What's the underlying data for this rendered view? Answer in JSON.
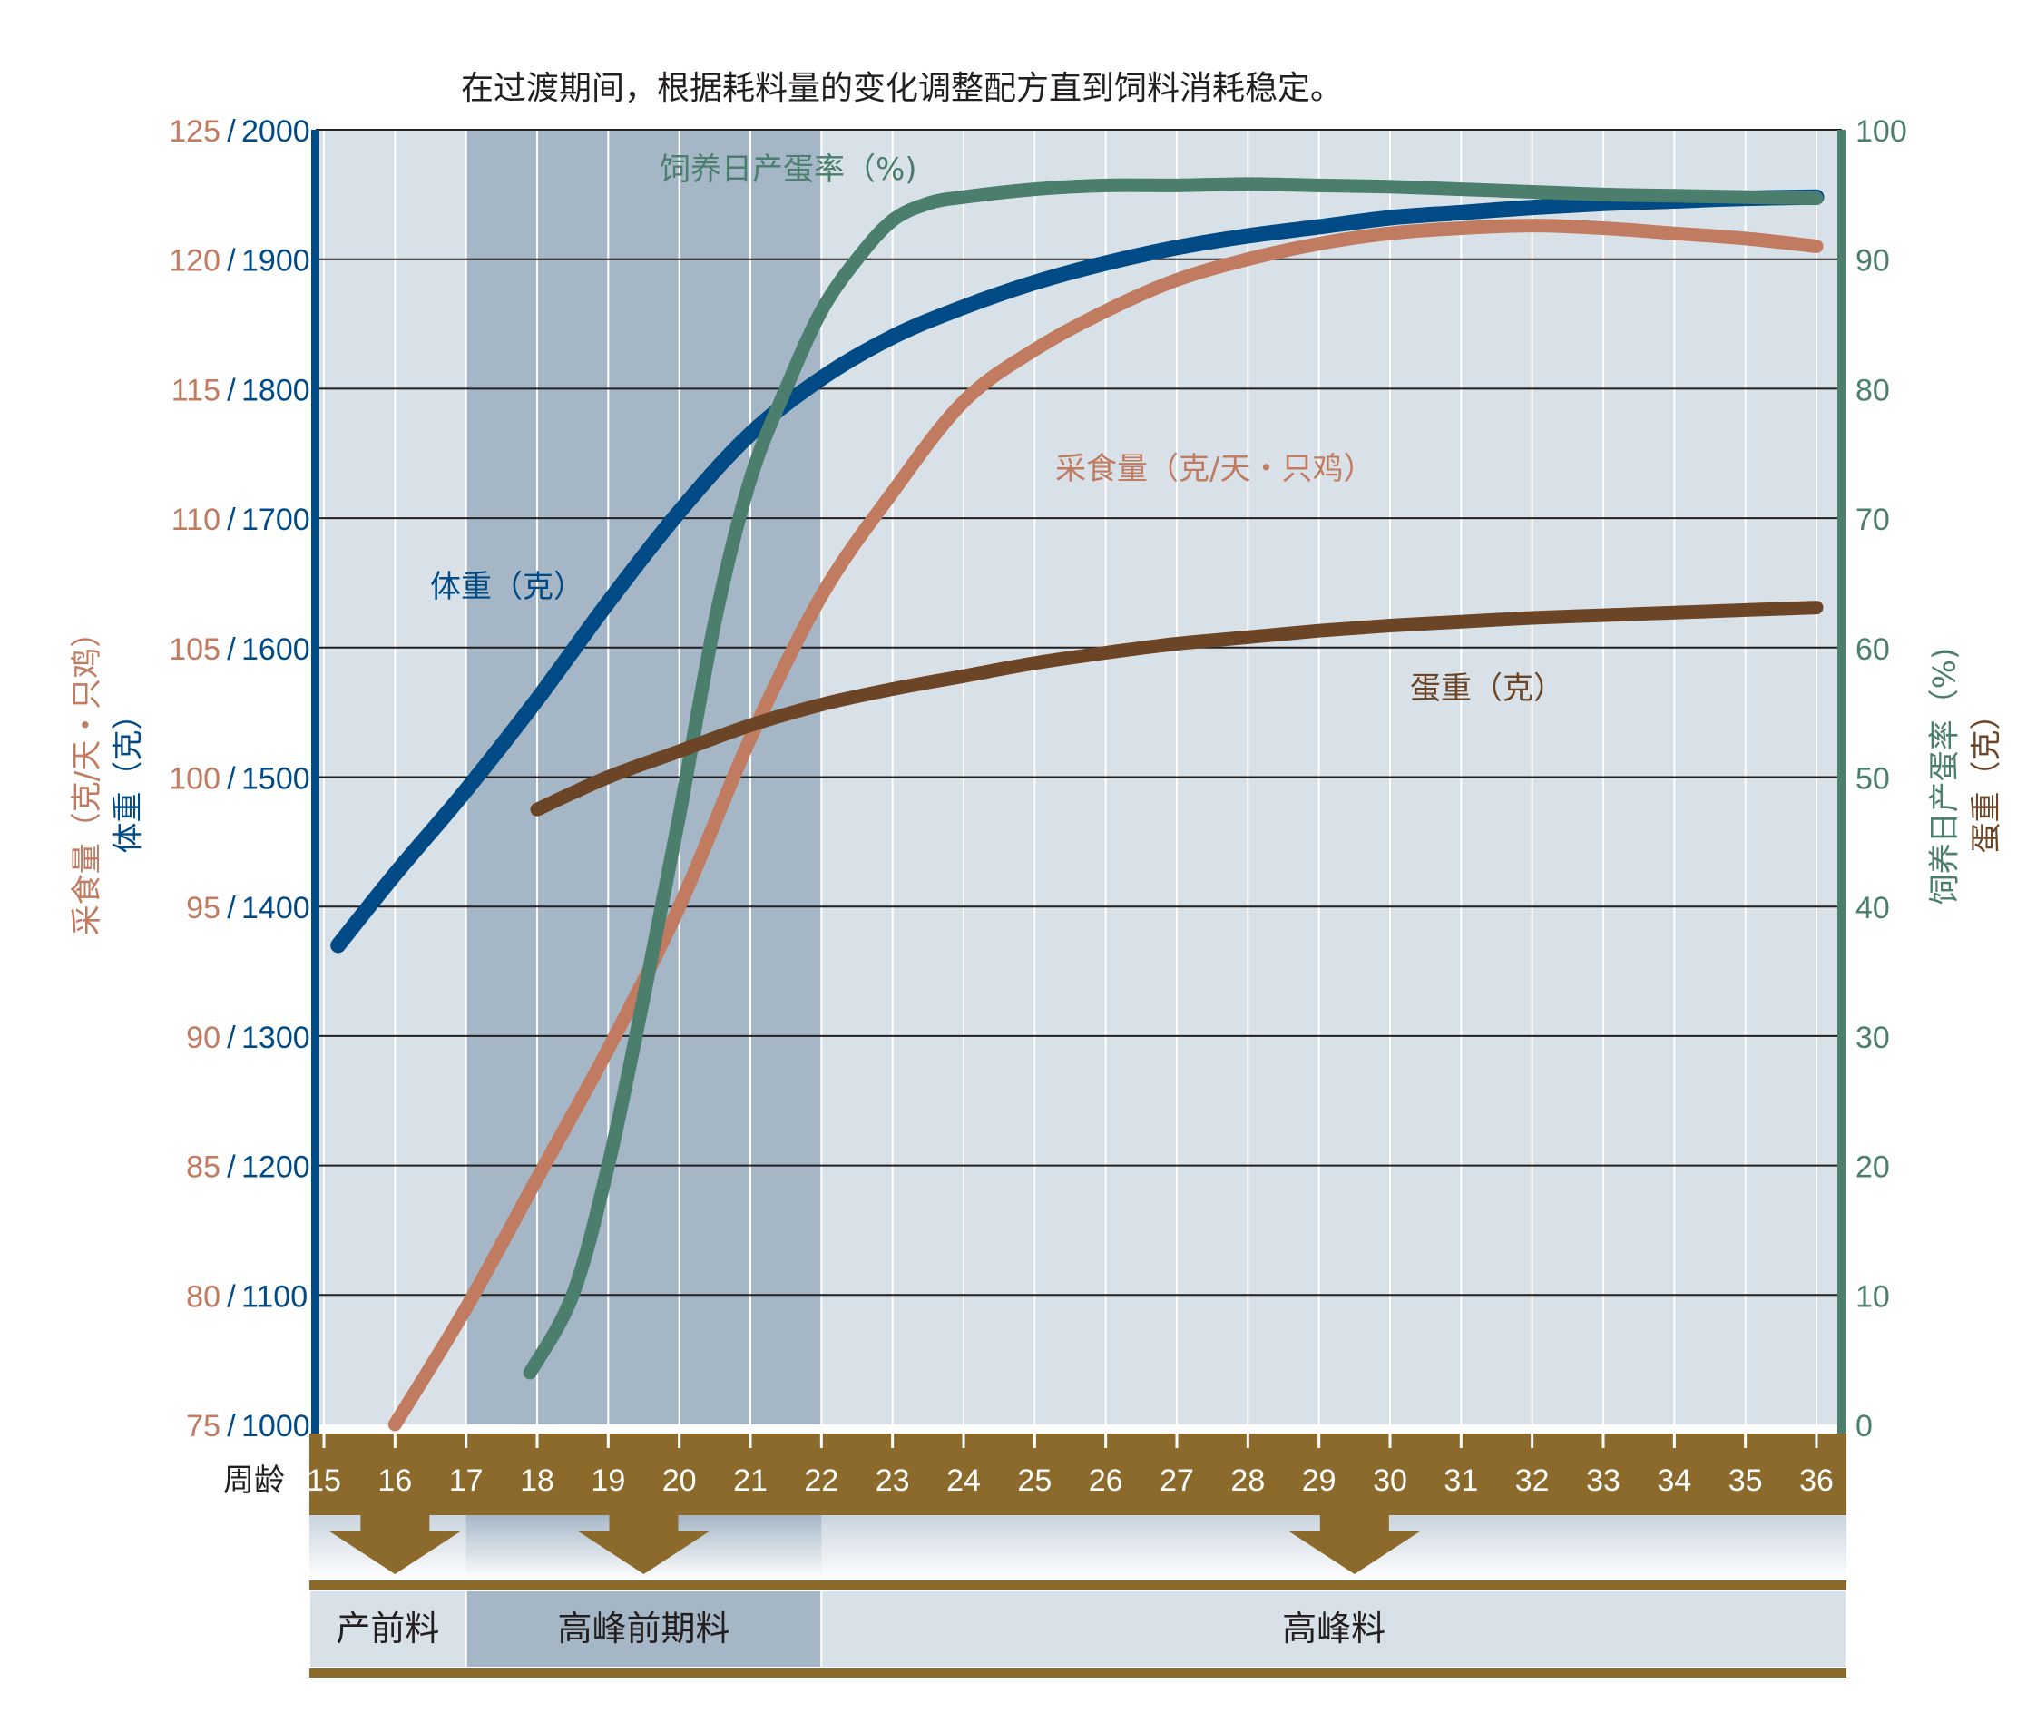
{
  "title": "在过渡期间，根据耗料量的变化调整配方直到饲料消耗稳定。",
  "colors": {
    "body_weight": "#004a86",
    "feed": "#c07b60",
    "production": "#4b7e6d",
    "egg_weight": "#6b4526",
    "band": "#8b6a2b",
    "plot_bg": "#d9e1e8",
    "shade_bg": "#a5b7c7"
  },
  "axes": {
    "left_label_feed": "采食量（克/天・只鸡）",
    "left_label_weight": "体重（克）",
    "right_label_production": "饲养日产蛋率（%)",
    "right_label_egg": "蛋重（克）",
    "x_label": "周龄",
    "feed_ticks": [
      "75",
      "80",
      "85",
      "90",
      "95",
      "100",
      "105",
      "110",
      "115",
      "120",
      "125"
    ],
    "weight_ticks": [
      "1000",
      "1100",
      "1200",
      "1300",
      "1400",
      "1500",
      "1600",
      "1700",
      "1800",
      "1900",
      "2000"
    ],
    "right_ticks": [
      "0",
      "10",
      "20",
      "30",
      "40",
      "50",
      "60",
      "70",
      "80",
      "90",
      "100"
    ],
    "x_ticks": [
      "15",
      "16",
      "17",
      "18",
      "19",
      "20",
      "21",
      "22",
      "23",
      "24",
      "25",
      "26",
      "27",
      "28",
      "29",
      "30",
      "31",
      "32",
      "33",
      "34",
      "35",
      "36"
    ]
  },
  "feed_phases": [
    {
      "label": "产前料",
      "from_week": 15,
      "to_week": 17
    },
    {
      "label": "高峰前期料",
      "from_week": 17,
      "to_week": 22
    },
    {
      "label": "高峰料",
      "from_week": 22,
      "to_week": 36.3
    }
  ],
  "chart_data": {
    "type": "line",
    "x_unit": "周龄",
    "xlim": [
      15,
      36
    ],
    "ylim_feed": [
      75,
      125
    ],
    "ylim_weight": [
      1000,
      2000
    ],
    "ylim_right": [
      0,
      100
    ],
    "shaded_range_weeks": [
      17,
      22
    ],
    "series": [
      {
        "name": "体重（克）",
        "axis": "left_weight",
        "x": [
          15.2,
          16,
          17,
          18,
          19,
          20,
          21,
          22,
          23,
          24,
          25,
          26,
          27,
          28,
          29,
          30,
          31,
          32,
          33,
          34,
          35,
          36
        ],
        "y": [
          1370,
          1425,
          1490,
          1560,
          1635,
          1705,
          1765,
          1808,
          1840,
          1863,
          1882,
          1897,
          1909,
          1918,
          1925,
          1932,
          1936,
          1940,
          1943,
          1945,
          1947,
          1948
        ]
      },
      {
        "name": "采食量（克/天・只鸡）",
        "axis": "left_feed",
        "x": [
          16,
          17,
          18,
          19,
          20,
          21,
          22,
          23,
          24,
          25,
          26,
          27,
          28,
          29,
          30,
          31,
          32,
          33,
          34,
          35,
          36
        ],
        "y": [
          75,
          79.5,
          84.5,
          89.5,
          95,
          101.5,
          107,
          111,
          114.5,
          116.5,
          118,
          119.2,
          120,
          120.6,
          121,
          121.2,
          121.3,
          121.2,
          121,
          120.8,
          120.5
        ]
      },
      {
        "name": "饲养日产蛋率（%)",
        "axis": "right",
        "x": [
          17.9,
          18.5,
          19,
          19.5,
          20,
          20.5,
          21,
          21.5,
          22,
          22.5,
          23,
          23.5,
          24,
          25,
          26,
          27,
          28,
          29,
          30,
          31,
          32,
          33,
          34,
          35,
          36
        ],
        "y": [
          4,
          10,
          20,
          33,
          47,
          62,
          73,
          80,
          86,
          90,
          93,
          94.3,
          94.8,
          95.4,
          95.7,
          95.7,
          95.8,
          95.7,
          95.6,
          95.4,
          95.2,
          95,
          94.9,
          94.8,
          94.7
        ]
      },
      {
        "name": "蛋重（克）",
        "axis": "right",
        "x": [
          18,
          19,
          20,
          21,
          22,
          23,
          24,
          25,
          26,
          27,
          28,
          29,
          30,
          31,
          32,
          33,
          34,
          35,
          36
        ],
        "y": [
          47.5,
          50,
          52,
          54,
          55.6,
          56.8,
          57.8,
          58.8,
          59.6,
          60.3,
          60.8,
          61.3,
          61.7,
          62,
          62.3,
          62.5,
          62.7,
          62.9,
          63.1
        ]
      }
    ],
    "series_labels": {
      "production": "饲养日产蛋率（%)",
      "body_weight": "体重（克）",
      "feed": "采食量（克/天・只鸡）",
      "egg_weight": "蛋重（克）"
    }
  }
}
